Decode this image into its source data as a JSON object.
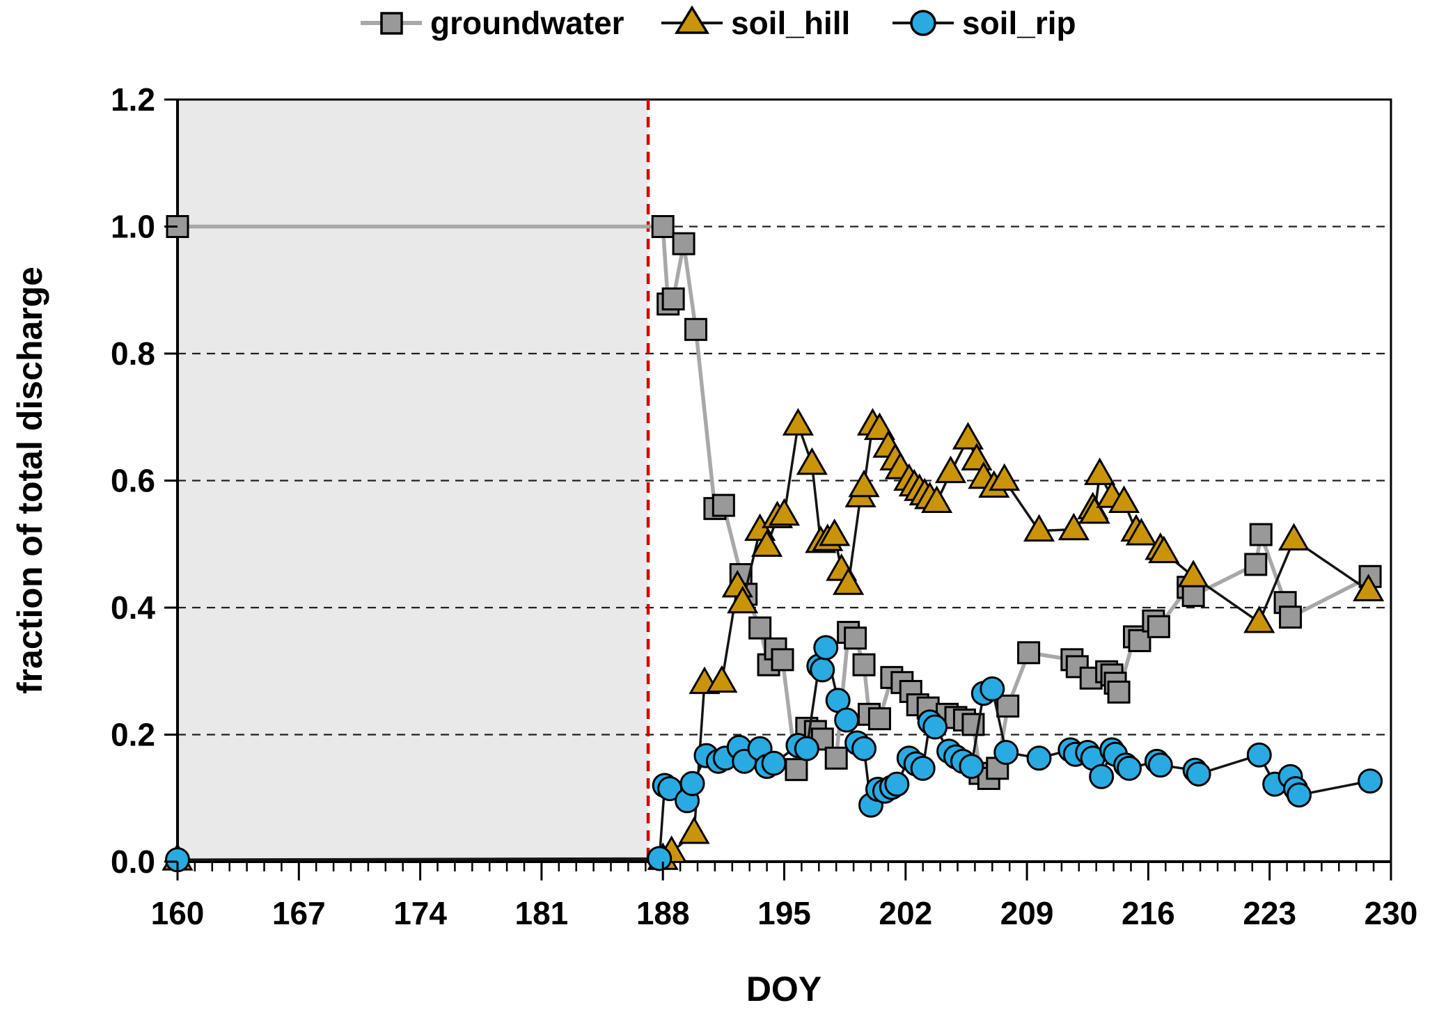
{
  "figure": {
    "background": "#ffffff",
    "plot_background": "#ffffff",
    "shaded_band_color": "#E9E9E9",
    "grid_color": "#202020",
    "border_color": "#000000",
    "red_dashed_line_color": "#D40000"
  },
  "chart_data": {
    "type": "line",
    "title": "",
    "xlabel": "DOY",
    "ylabel": "fraction of total discharge",
    "xlim": [
      160,
      230
    ],
    "ylim": [
      0,
      1.2
    ],
    "xtick_labels": [
      "160",
      "167",
      "174",
      "181",
      "188",
      "195",
      "202",
      "209",
      "216",
      "223",
      "230"
    ],
    "xticks_major": [
      160,
      167,
      174,
      181,
      188,
      195,
      202,
      209,
      216,
      223,
      230
    ],
    "xtick_minor_step": 1,
    "ytick_labels": [
      "0.0",
      "0.2",
      "0.4",
      "0.6",
      "0.8",
      "1.0",
      "1.2"
    ],
    "yticks": [
      0,
      0.2,
      0.4,
      0.6,
      0.8,
      1.0,
      1.2
    ],
    "gridline_values": [
      0.2,
      0.4,
      0.6,
      0.8,
      1.0
    ],
    "grid_style": "dashed",
    "legend_position": "top",
    "annotations": {
      "shaded_xrange": [
        160,
        187.15
      ],
      "vline": {
        "x": 187.15,
        "color": "#D40000",
        "style": "dashed"
      }
    },
    "series": [
      {
        "name": "groundwater",
        "marker": "square",
        "marker_color": "#999999",
        "line_color": "#A8A8A8",
        "points": [
          [
            160,
            1.0
          ],
          [
            188,
            1.0
          ],
          [
            188.3,
            0.878
          ],
          [
            188.6,
            0.886
          ],
          [
            189.2,
            0.973
          ],
          [
            189.9,
            0.838
          ],
          [
            191.0,
            0.556
          ],
          [
            191.5,
            0.561
          ],
          [
            192.5,
            0.452
          ],
          [
            192.8,
            0.421
          ],
          [
            193.6,
            0.368
          ],
          [
            194.1,
            0.31
          ],
          [
            194.5,
            0.335
          ],
          [
            194.9,
            0.318
          ],
          [
            195.7,
            0.145
          ],
          [
            196.3,
            0.21
          ],
          [
            196.8,
            0.205
          ],
          [
            197.2,
            0.193
          ],
          [
            198.0,
            0.163
          ],
          [
            198.7,
            0.361
          ],
          [
            199.1,
            0.352
          ],
          [
            199.6,
            0.31
          ],
          [
            199.9,
            0.232
          ],
          [
            200.5,
            0.225
          ],
          [
            201.2,
            0.29
          ],
          [
            201.8,
            0.282
          ],
          [
            202.3,
            0.268
          ],
          [
            202.7,
            0.247
          ],
          [
            203.3,
            0.242
          ],
          [
            204.4,
            0.232
          ],
          [
            204.9,
            0.227
          ],
          [
            205.4,
            0.223
          ],
          [
            205.9,
            0.216
          ],
          [
            206.3,
            0.139
          ],
          [
            206.8,
            0.131
          ],
          [
            207.3,
            0.147
          ],
          [
            207.9,
            0.245
          ],
          [
            209.1,
            0.329
          ],
          [
            211.6,
            0.318
          ],
          [
            211.9,
            0.307
          ],
          [
            212.7,
            0.289
          ],
          [
            213.6,
            0.299
          ],
          [
            213.9,
            0.294
          ],
          [
            214.1,
            0.281
          ],
          [
            214.3,
            0.267
          ],
          [
            215.2,
            0.354
          ],
          [
            215.5,
            0.348
          ],
          [
            216.3,
            0.379
          ],
          [
            216.6,
            0.37
          ],
          [
            218.3,
            0.432
          ],
          [
            218.6,
            0.419
          ],
          [
            222.2,
            0.468
          ],
          [
            222.5,
            0.515
          ],
          [
            223.9,
            0.408
          ],
          [
            224.2,
            0.385
          ],
          [
            228.8,
            0.449
          ]
        ]
      },
      {
        "name": "soil_hill",
        "marker": "triangle",
        "marker_color": "#C9940A",
        "line_color": "#141414",
        "points": [
          [
            160,
            0.003
          ],
          [
            188.0,
            0.004
          ],
          [
            188.5,
            0.015
          ],
          [
            189.8,
            0.045
          ],
          [
            190.4,
            0.281
          ],
          [
            191.4,
            0.283
          ],
          [
            192.3,
            0.433
          ],
          [
            192.6,
            0.408
          ],
          [
            193.6,
            0.522
          ],
          [
            194.0,
            0.497
          ],
          [
            194.6,
            0.542
          ],
          [
            195.0,
            0.546
          ],
          [
            195.8,
            0.688
          ],
          [
            196.6,
            0.626
          ],
          [
            197.1,
            0.503
          ],
          [
            197.5,
            0.506
          ],
          [
            197.9,
            0.514
          ],
          [
            198.3,
            0.459
          ],
          [
            198.7,
            0.437
          ],
          [
            199.4,
            0.575
          ],
          [
            199.6,
            0.591
          ],
          [
            200.1,
            0.688
          ],
          [
            200.5,
            0.681
          ],
          [
            201.0,
            0.653
          ],
          [
            201.4,
            0.633
          ],
          [
            201.7,
            0.619
          ],
          [
            202.2,
            0.601
          ],
          [
            202.5,
            0.592
          ],
          [
            202.8,
            0.585
          ],
          [
            203.1,
            0.578
          ],
          [
            203.4,
            0.572
          ],
          [
            203.8,
            0.566
          ],
          [
            204.6,
            0.613
          ],
          [
            205.6,
            0.666
          ],
          [
            206.1,
            0.633
          ],
          [
            206.5,
            0.604
          ],
          [
            207.1,
            0.59
          ],
          [
            207.7,
            0.601
          ],
          [
            209.7,
            0.521
          ],
          [
            211.7,
            0.523
          ],
          [
            212.8,
            0.556
          ],
          [
            212.9,
            0.549
          ],
          [
            213.2,
            0.61
          ],
          [
            213.9,
            0.574
          ],
          [
            214.6,
            0.566
          ],
          [
            215.3,
            0.521
          ],
          [
            215.6,
            0.515
          ],
          [
            216.7,
            0.492
          ],
          [
            216.9,
            0.487
          ],
          [
            218.6,
            0.449
          ],
          [
            222.4,
            0.377
          ],
          [
            224.4,
            0.507
          ],
          [
            228.7,
            0.427
          ]
        ]
      },
      {
        "name": "soil_rip",
        "marker": "circle",
        "marker_color": "#29ABE2",
        "line_color": "#141414",
        "points": [
          [
            160,
            0.003
          ],
          [
            187.8,
            0.005
          ],
          [
            188.1,
            0.12
          ],
          [
            188.4,
            0.115
          ],
          [
            189.4,
            0.096
          ],
          [
            189.7,
            0.123
          ],
          [
            190.5,
            0.167
          ],
          [
            191.2,
            0.158
          ],
          [
            191.6,
            0.163
          ],
          [
            192.4,
            0.18
          ],
          [
            192.7,
            0.158
          ],
          [
            193.6,
            0.178
          ],
          [
            194.0,
            0.15
          ],
          [
            194.4,
            0.155
          ],
          [
            195.8,
            0.183
          ],
          [
            196.3,
            0.178
          ],
          [
            197.0,
            0.308
          ],
          [
            197.2,
            0.302
          ],
          [
            197.4,
            0.337
          ],
          [
            198.1,
            0.254
          ],
          [
            198.6,
            0.223
          ],
          [
            199.2,
            0.187
          ],
          [
            199.6,
            0.178
          ],
          [
            200.0,
            0.089
          ],
          [
            200.4,
            0.114
          ],
          [
            200.8,
            0.111
          ],
          [
            201.2,
            0.117
          ],
          [
            201.5,
            0.122
          ],
          [
            202.2,
            0.163
          ],
          [
            202.6,
            0.154
          ],
          [
            203.0,
            0.147
          ],
          [
            203.4,
            0.22
          ],
          [
            203.7,
            0.212
          ],
          [
            204.5,
            0.174
          ],
          [
            204.9,
            0.165
          ],
          [
            205.3,
            0.158
          ],
          [
            205.8,
            0.15
          ],
          [
            206.5,
            0.265
          ],
          [
            207.0,
            0.272
          ],
          [
            207.8,
            0.172
          ],
          [
            209.7,
            0.163
          ],
          [
            211.5,
            0.176
          ],
          [
            211.8,
            0.169
          ],
          [
            212.5,
            0.172
          ],
          [
            212.8,
            0.163
          ],
          [
            213.3,
            0.134
          ],
          [
            213.9,
            0.176
          ],
          [
            214.1,
            0.169
          ],
          [
            214.7,
            0.152
          ],
          [
            214.9,
            0.147
          ],
          [
            216.5,
            0.158
          ],
          [
            216.7,
            0.152
          ],
          [
            218.7,
            0.144
          ],
          [
            218.9,
            0.138
          ],
          [
            222.4,
            0.168
          ],
          [
            223.3,
            0.122
          ],
          [
            224.2,
            0.134
          ],
          [
            224.5,
            0.115
          ],
          [
            224.7,
            0.105
          ],
          [
            228.8,
            0.127
          ]
        ]
      }
    ]
  }
}
